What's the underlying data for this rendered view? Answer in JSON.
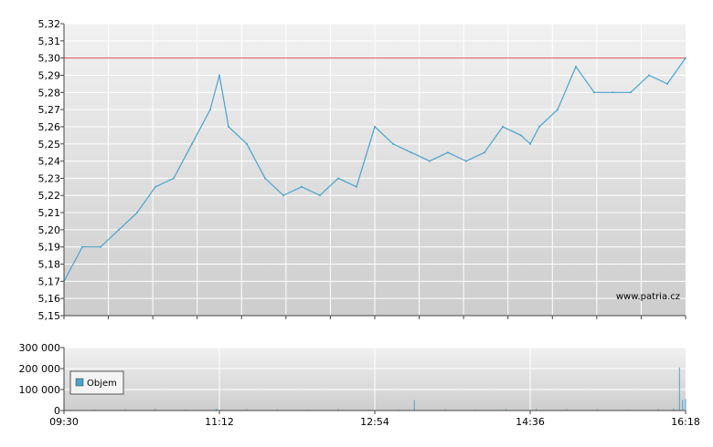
{
  "chart_data": [
    {
      "type": "line",
      "title": "",
      "xlabel": "",
      "ylabel": "",
      "ylim": [
        5.15,
        5.32
      ],
      "y_tick_labels": [
        "5,15",
        "5,16",
        "5,17",
        "5,18",
        "5,19",
        "5,20",
        "5,21",
        "5,22",
        "5,23",
        "5,24",
        "5,25",
        "5,26",
        "5,27",
        "5,28",
        "5,29",
        "5,30",
        "5,31",
        "5,32"
      ],
      "reference_line": {
        "value": 5.3,
        "color": "#e05050"
      },
      "watermark": "www.patria.cz",
      "line_color": "#4aa3cf",
      "grid": true,
      "series": [
        {
          "x": [
            "09:30",
            "09:42",
            "09:54",
            "10:06",
            "10:18",
            "10:30",
            "10:42",
            "10:54",
            "11:06",
            "11:12",
            "11:18",
            "11:30",
            "11:42",
            "11:54",
            "12:06",
            "12:18",
            "12:30",
            "12:42",
            "12:54",
            "13:06",
            "13:18",
            "13:30",
            "13:42",
            "13:54",
            "14:06",
            "14:18",
            "14:30",
            "14:36",
            "14:42",
            "14:54",
            "15:06",
            "15:18",
            "15:30",
            "15:42",
            "15:54",
            "16:06",
            "16:18"
          ],
          "values": [
            5.17,
            5.19,
            5.19,
            5.2,
            5.21,
            5.225,
            5.23,
            5.25,
            5.27,
            5.29,
            5.26,
            5.25,
            5.23,
            5.22,
            5.225,
            5.22,
            5.23,
            5.225,
            5.26,
            5.25,
            5.245,
            5.24,
            5.245,
            5.24,
            5.245,
            5.26,
            5.255,
            5.25,
            5.26,
            5.27,
            5.295,
            5.28,
            5.28,
            5.28,
            5.29,
            5.285,
            5.3
          ]
        }
      ]
    },
    {
      "type": "bar",
      "title": "",
      "xlabel": "",
      "ylabel": "",
      "ylim": [
        0,
        300000
      ],
      "y_tick_labels": [
        "0",
        "100 000",
        "200 000",
        "300 000"
      ],
      "x_tick_labels": [
        "09:30",
        "11:12",
        "12:54",
        "14:36",
        "16:18"
      ],
      "legend": {
        "label": "Objem",
        "position": "top-left"
      },
      "bar_color": "#4aa3cf",
      "series": [
        {
          "name": "Objem",
          "x": [
            "09:30",
            "09:50",
            "10:10",
            "10:30",
            "10:50",
            "11:10",
            "11:30",
            "11:50",
            "12:10",
            "12:30",
            "12:50",
            "13:10",
            "13:20",
            "13:40",
            "14:00",
            "14:20",
            "14:40",
            "15:00",
            "15:20",
            "15:40",
            "16:00",
            "16:10",
            "16:14",
            "16:16",
            "16:18"
          ],
          "values": [
            8000,
            5000,
            6000,
            7000,
            5000,
            9000,
            6000,
            5000,
            4000,
            6000,
            5000,
            4000,
            50000,
            6000,
            5000,
            7000,
            8000,
            6000,
            7000,
            5000,
            6000,
            10000,
            205000,
            50000,
            55000
          ]
        }
      ]
    }
  ]
}
